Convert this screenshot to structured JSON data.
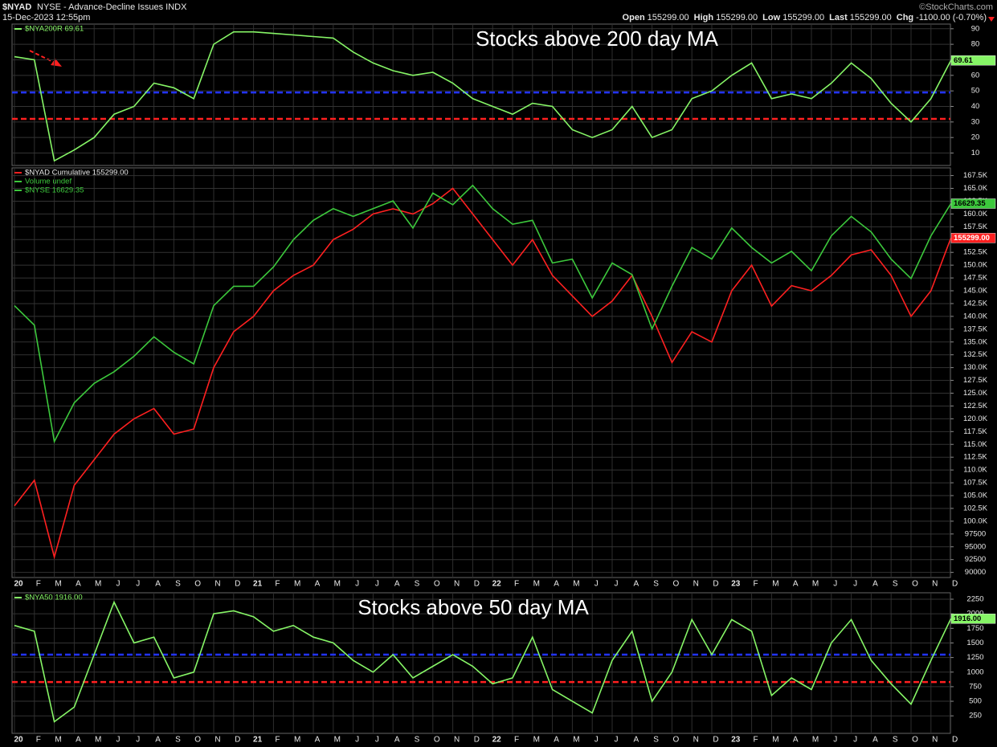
{
  "header": {
    "symbol": "$NYAD",
    "description": "NYSE - Advance-Decline Issues INDX",
    "datetime": "15-Dec-2023 12:55pm",
    "copyright": "©StockCharts.com",
    "quote": [
      {
        "label": "Open",
        "value": "155299.00"
      },
      {
        "label": "High",
        "value": "155299.00"
      },
      {
        "label": "Low",
        "value": "155299.00"
      },
      {
        "label": "Last",
        "value": "155299.00"
      },
      {
        "label": "Chg",
        "value": "-1100.00 (-0.70%)"
      }
    ]
  },
  "chart_data": [
    {
      "type": "line",
      "annotation": "Stocks above 200 day MA",
      "ylim": [
        2,
        93
      ],
      "yticks": [
        10,
        20,
        30,
        40,
        50,
        60,
        70,
        80,
        90
      ],
      "grid": true,
      "hlines": [
        {
          "value": 49,
          "color": "#2233ff"
        },
        {
          "value": 32,
          "color": "#ff2020"
        }
      ],
      "series": [
        {
          "name": "$NYA200R 69.61",
          "color": "#86f566",
          "values": [
            72,
            70,
            5,
            12,
            20,
            35,
            40,
            55,
            52,
            45,
            80,
            88,
            88,
            87,
            86,
            85,
            84,
            75,
            68,
            63,
            60,
            62,
            55,
            45,
            40,
            35,
            42,
            40,
            25,
            20,
            25,
            40,
            20,
            25,
            45,
            50,
            60,
            68,
            45,
            48,
            45,
            55,
            68,
            58,
            42,
            30,
            45,
            69.61
          ]
        }
      ]
    },
    {
      "type": "line",
      "categories": [
        "20",
        "F",
        "M",
        "A",
        "M",
        "J",
        "J",
        "A",
        "S",
        "O",
        "N",
        "D",
        "21",
        "F",
        "M",
        "A",
        "M",
        "J",
        "J",
        "A",
        "S",
        "O",
        "N",
        "D",
        "22",
        "F",
        "M",
        "A",
        "M",
        "J",
        "J",
        "A",
        "S",
        "O",
        "N",
        "D",
        "23",
        "F",
        "M",
        "A",
        "M",
        "J",
        "J",
        "A",
        "S",
        "O",
        "N",
        "D"
      ],
      "ylim": [
        89000,
        169000
      ],
      "y2lim": [
        7000,
        17550
      ],
      "yticks": [
        90000,
        92500,
        95000,
        97500,
        {
          "value": 100000,
          "label": "100.0K"
        },
        {
          "value": 102500,
          "label": "102.5K"
        },
        {
          "value": 105000,
          "label": "105.0K"
        },
        {
          "value": 107500,
          "label": "107.5K"
        },
        {
          "value": 110000,
          "label": "110.0K"
        },
        {
          "value": 112500,
          "label": "112.5K"
        },
        {
          "value": 115000,
          "label": "115.0K"
        },
        {
          "value": 117500,
          "label": "117.5K"
        },
        {
          "value": 120000,
          "label": "120.0K"
        },
        {
          "value": 122500,
          "label": "122.5K"
        },
        {
          "value": 125000,
          "label": "125.0K"
        },
        {
          "value": 127500,
          "label": "127.5K"
        },
        {
          "value": 130000,
          "label": "130.0K"
        },
        {
          "value": 132500,
          "label": "132.5K"
        },
        {
          "value": 135000,
          "label": "135.0K"
        },
        {
          "value": 137500,
          "label": "137.5K"
        },
        {
          "value": 140000,
          "label": "140.0K"
        },
        {
          "value": 142500,
          "label": "142.5K"
        },
        {
          "value": 145000,
          "label": "145.0K"
        },
        {
          "value": 147500,
          "label": "147.5K"
        },
        {
          "value": 150000,
          "label": "150.0K"
        },
        {
          "value": 152500,
          "label": "152.5K"
        },
        {
          "value": 155000,
          "label": "155.0K"
        },
        {
          "value": 157500,
          "label": "157.5K"
        },
        {
          "value": 160000,
          "label": "160.0K"
        },
        {
          "value": 162500,
          "label": "162.5K"
        },
        {
          "value": 165000,
          "label": "165.0K"
        },
        {
          "value": 167500,
          "label": "167.5K"
        }
      ],
      "grid": true,
      "volume_label": "Volume undef",
      "series": [
        {
          "name": "$NYAD Cumulative 155299.00",
          "color": "#ff2020",
          "last_label": "155299.00",
          "values": [
            103000,
            108000,
            93000,
            107000,
            112000,
            117000,
            120000,
            122000,
            117000,
            118000,
            130000,
            137000,
            140000,
            145000,
            148000,
            150000,
            155000,
            157000,
            160000,
            161000,
            160000,
            162000,
            165000,
            160000,
            155000,
            150000,
            155000,
            148000,
            144000,
            140000,
            143000,
            148000,
            140000,
            131000,
            137000,
            135000,
            145000,
            150000,
            142000,
            146000,
            145000,
            148000,
            152000,
            153000,
            148000,
            140000,
            145000,
            155299
          ]
        },
        {
          "name": "$NYSE 16629.35",
          "color": "#3cc83c",
          "axis": "y2",
          "values": [
            14000,
            13500,
            10500,
            11500,
            12000,
            12300,
            12700,
            13200,
            12800,
            12500,
            14000,
            14500,
            14500,
            15000,
            15700,
            16200,
            16500,
            16300,
            16500,
            16700,
            16000,
            16900,
            16600,
            17100,
            16500,
            16100,
            16200,
            15100,
            15200,
            14200,
            15100,
            14800,
            13400,
            14500,
            15500,
            15200,
            16000,
            15500,
            15100,
            15400,
            14900,
            15800,
            16300,
            15900,
            15200,
            14700,
            15800,
            16629.35
          ]
        }
      ]
    },
    {
      "type": "line",
      "categories": [
        "20",
        "F",
        "M",
        "A",
        "M",
        "J",
        "J",
        "A",
        "S",
        "O",
        "N",
        "D",
        "21",
        "F",
        "M",
        "A",
        "M",
        "J",
        "J",
        "A",
        "S",
        "O",
        "N",
        "D",
        "22",
        "F",
        "M",
        "A",
        "M",
        "J",
        "J",
        "A",
        "S",
        "O",
        "N",
        "D",
        "23",
        "F",
        "M",
        "A",
        "M",
        "J",
        "J",
        "A",
        "S",
        "O",
        "N",
        "D"
      ],
      "annotation": "Stocks above 50 day MA",
      "ylim": [
        -50,
        2360
      ],
      "yticks": [
        250,
        500,
        750,
        1000,
        1250,
        1500,
        1750,
        2000,
        2250
      ],
      "grid": true,
      "hlines": [
        {
          "value": 1300,
          "color": "#2233ff"
        },
        {
          "value": 830,
          "color": "#ff2020"
        }
      ],
      "series": [
        {
          "name": "$NYA50 1916.00",
          "color": "#86f566",
          "last_label": "1916.00",
          "values": [
            1800,
            1700,
            150,
            400,
            1300,
            2200,
            1500,
            1600,
            900,
            1000,
            2000,
            2050,
            1950,
            1700,
            1800,
            1600,
            1500,
            1200,
            1000,
            1300,
            900,
            1100,
            1300,
            1100,
            800,
            900,
            1600,
            700,
            500,
            300,
            1200,
            1700,
            500,
            1000,
            1900,
            1300,
            1900,
            1700,
            600,
            900,
            700,
            1500,
            1900,
            1200,
            800,
            450,
            1200,
            1916
          ]
        }
      ]
    }
  ]
}
